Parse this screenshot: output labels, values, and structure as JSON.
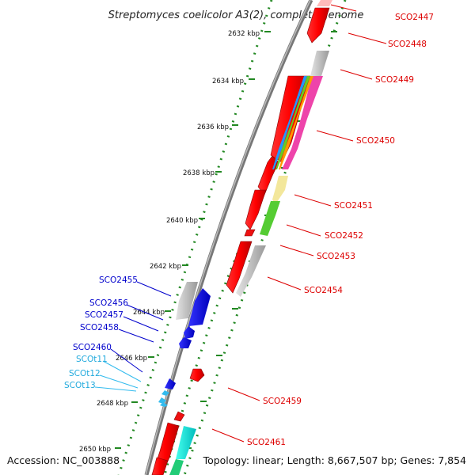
{
  "title": "Streptomyces coelicolor A3(2), complete genome",
  "accession": "Accession: NC_003888",
  "topology": "Topology: linear; Length: 8,667,507 bp; Genes: 7,854",
  "ticks": [
    "2632 kbp",
    "2634 kbp",
    "2636 kbp",
    "2638 kbp",
    "2640 kbp",
    "2642 kbp",
    "2644 kbp",
    "2646 kbp",
    "2648 kbp",
    "2650 kbp"
  ],
  "labels_fwd": [
    "SCO2447",
    "SCO2448",
    "SCO2449",
    "SCO2450",
    "SCO2451",
    "SCO2452",
    "SCO2453",
    "SCO2454",
    "SCO2459",
    "SCO2461"
  ],
  "labels_rev": [
    "SCO2455",
    "SCO2456",
    "SCO2457",
    "SCO2458",
    "SCO2460"
  ],
  "labels_rna": [
    "SCOt11",
    "SCOt12",
    "SCOt13"
  ],
  "colors": {
    "forward_gene": "#ee1111",
    "reverse_gene": "#1111ee",
    "rna": "#33bbee",
    "pseudo": "#bbbbbb",
    "backbone": "#888888",
    "tick_dots": "#228822"
  }
}
